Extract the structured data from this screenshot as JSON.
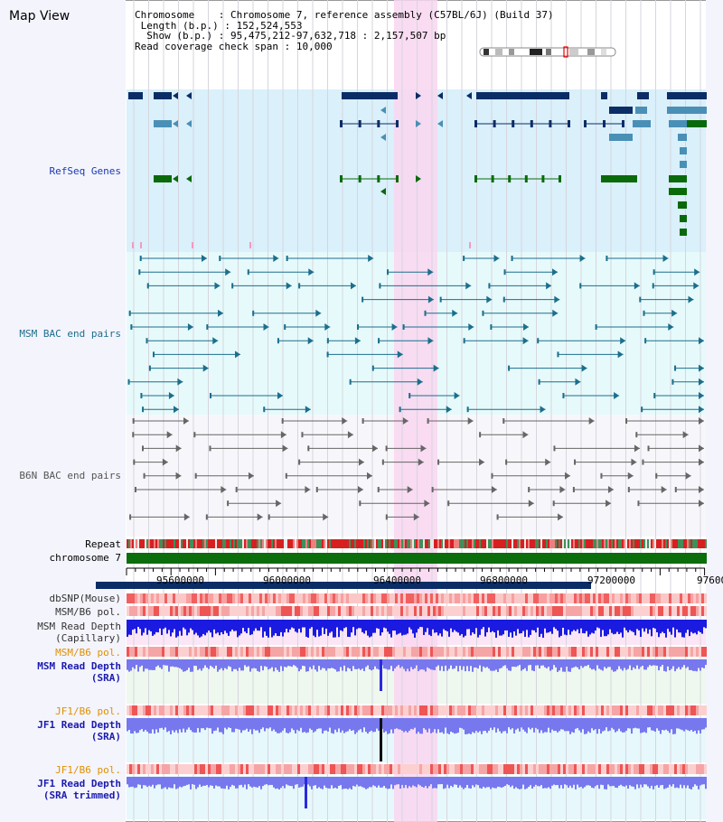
{
  "app_title": "Map View",
  "info": {
    "chromosome_label": "Chromosome",
    "chromosome_value": "Chromosome 7, reference assembly (C57BL/6J) (Build 37)",
    "length_label": "Length (b.p.)",
    "length_value": "152,524,553",
    "show_label": "Show (b.p.)",
    "show_value": "95,475,212-97,632,718 : 2,157,507 bp",
    "coverage_label": "Read coverage check span",
    "coverage_value": "10,000"
  },
  "tracks": {
    "refseq": "RefSeq Genes",
    "msm_bac": "MSM BAC end pairs",
    "b6n_bac": "B6N BAC end pairs",
    "repeat": "Repeat",
    "chromosome": "chromosome 7",
    "dbsnp": "dbSNP(Mouse)",
    "msm_b6_pol_1": "MSM/B6 pol.",
    "msm_read_depth_cap_1": "MSM Read Depth",
    "msm_read_depth_cap_2": "(Capillary)",
    "msm_b6_pol_2": "MSM/B6 pol.",
    "msm_read_depth_sra_1": "MSM Read Depth",
    "msm_read_depth_sra_2": "(SRA)",
    "jf1_b6_pol_1": "JF1/B6 pol.",
    "jf1_read_depth_sra_1": "JF1 Read Depth",
    "jf1_read_depth_sra_2": "(SRA)",
    "jf1_b6_pol_2": "JF1/B6 pol.",
    "jf1_read_depth_trim_1": "JF1 Read Depth",
    "jf1_read_depth_trim_2": "(SRA trimmed)"
  },
  "axis_ticks": [
    "95600000",
    "96000000",
    "96400000",
    "96800000",
    "97200000",
    "97600"
  ],
  "colors": {
    "highlight": "#f9d6f0",
    "refseq_bg": "#daf0fb",
    "msm_bac_bg": "#e6fafb",
    "b6n_bg": "#f7f7fb",
    "gene_dark": "#0b2d66",
    "gene_mid": "#4a8fb6",
    "gene_green": "#0a6a0a",
    "msm_line": "#1c6e8c",
    "b6n_line": "#666666",
    "depth_blue": "#1a1ae0",
    "depth_light": "#7777ee"
  }
}
